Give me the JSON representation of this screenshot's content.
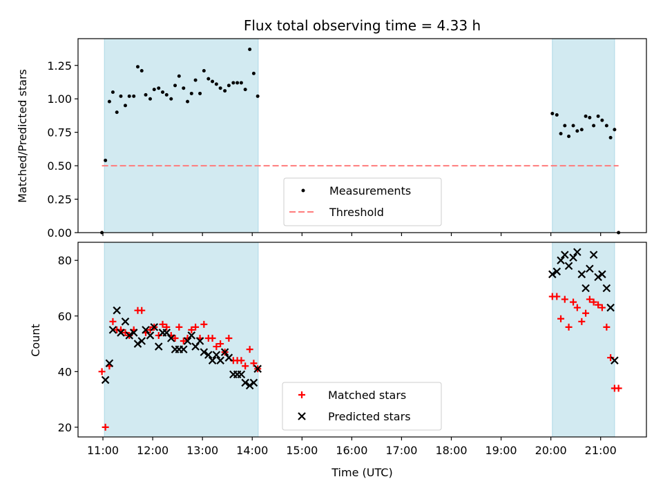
{
  "chart_data": {
    "type": "scatter",
    "title": "Flux total observing time = 4.33 h",
    "xlabel": "Time (UTC)",
    "x_ticks": [
      "11:00",
      "12:00",
      "13:00",
      "14:00",
      "15:00",
      "16:00",
      "17:00",
      "18:00",
      "19:00",
      "20:00",
      "21:00"
    ],
    "xlim": [
      10.5,
      21.92
    ],
    "shaded_intervals": [
      [
        11.03,
        14.12
      ],
      [
        20.03,
        21.28
      ]
    ],
    "colors": {
      "shade": "#add8e6",
      "measurements": "#000000",
      "threshold": "#ff7b7b",
      "matched": "#ff0000",
      "predicted": "#000000"
    },
    "panels": [
      {
        "ylabel": "Matched/Predicted stars",
        "ylim": [
          0,
          1.45
        ],
        "y_ticks": [
          "0.00",
          "0.25",
          "0.50",
          "0.75",
          "1.00",
          "1.25"
        ],
        "y_tick_values": [
          0,
          0.25,
          0.5,
          0.75,
          1.0,
          1.25
        ],
        "legend_position": "lower center",
        "series": [
          {
            "name": "Measurements",
            "marker": "dot",
            "x": [
              10.98,
              11.05,
              11.13,
              11.2,
              11.28,
              11.36,
              11.45,
              11.53,
              11.62,
              11.7,
              11.78,
              11.86,
              11.95,
              12.03,
              12.12,
              12.2,
              12.28,
              12.37,
              12.45,
              12.53,
              12.62,
              12.7,
              12.78,
              12.86,
              12.95,
              13.03,
              13.12,
              13.2,
              13.28,
              13.36,
              13.45,
              13.53,
              13.62,
              13.7,
              13.78,
              13.86,
              13.95,
              14.03,
              14.11,
              20.03,
              20.12,
              20.2,
              20.28,
              20.36,
              20.45,
              20.53,
              20.62,
              20.7,
              20.78,
              20.86,
              20.95,
              21.03,
              21.12,
              21.2,
              21.28,
              21.36
            ],
            "y": [
              0.0,
              0.54,
              0.98,
              1.05,
              0.9,
              1.02,
              0.95,
              1.02,
              1.02,
              1.24,
              1.21,
              1.03,
              1.0,
              1.07,
              1.08,
              1.05,
              1.03,
              1.0,
              1.1,
              1.17,
              1.08,
              0.98,
              1.04,
              1.14,
              1.04,
              1.21,
              1.15,
              1.13,
              1.11,
              1.08,
              1.06,
              1.1,
              1.12,
              1.12,
              1.12,
              1.07,
              1.37,
              1.19,
              1.02,
              0.89,
              0.88,
              0.74,
              0.8,
              0.72,
              0.8,
              0.76,
              0.77,
              0.87,
              0.86,
              0.8,
              0.87,
              0.84,
              0.8,
              0.71,
              0.77,
              0.0
            ]
          },
          {
            "name": "Threshold",
            "marker": "dashed-line",
            "x": [
              10.98,
              21.36
            ],
            "y": [
              0.5,
              0.5
            ]
          }
        ]
      },
      {
        "ylabel": "Count",
        "ylim": [
          16.5,
          86.5
        ],
        "y_ticks": [
          "20",
          "40",
          "60",
          "80"
        ],
        "y_tick_values": [
          20,
          40,
          60,
          80
        ],
        "legend_position": "lower center",
        "series": [
          {
            "name": "Matched stars",
            "marker": "plus",
            "x": [
              10.98,
              11.05,
              11.13,
              11.2,
              11.28,
              11.36,
              11.45,
              11.53,
              11.62,
              11.7,
              11.78,
              11.86,
              11.95,
              12.03,
              12.12,
              12.2,
              12.28,
              12.37,
              12.45,
              12.53,
              12.62,
              12.7,
              12.78,
              12.86,
              12.95,
              13.03,
              13.12,
              13.2,
              13.28,
              13.36,
              13.45,
              13.53,
              13.62,
              13.7,
              13.78,
              13.86,
              13.95,
              14.03,
              14.11,
              20.03,
              20.12,
              20.2,
              20.28,
              20.36,
              20.45,
              20.53,
              20.62,
              20.7,
              20.78,
              20.86,
              20.95,
              21.03,
              21.12,
              21.2,
              21.28,
              21.36
            ],
            "y": [
              40,
              20,
              42,
              58,
              55,
              55,
              54,
              53,
              55,
              62,
              62,
              54,
              55,
              56,
              53,
              57,
              56,
              53,
              52,
              56,
              51,
              52,
              55,
              56,
              52,
              57,
              52,
              52,
              49,
              50,
              47,
              52,
              44,
              44,
              44,
              42,
              48,
              43,
              41,
              67,
              67,
              59,
              66,
              56,
              65,
              63,
              58,
              61,
              66,
              65,
              64,
              63,
              56,
              45,
              34,
              34
            ]
          },
          {
            "name": "Predicted stars",
            "marker": "x",
            "x": [
              11.05,
              11.13,
              11.2,
              11.28,
              11.36,
              11.45,
              11.53,
              11.62,
              11.7,
              11.78,
              11.86,
              11.95,
              12.03,
              12.12,
              12.2,
              12.28,
              12.37,
              12.45,
              12.53,
              12.62,
              12.7,
              12.78,
              12.86,
              12.95,
              13.03,
              13.12,
              13.2,
              13.28,
              13.36,
              13.45,
              13.53,
              13.62,
              13.7,
              13.78,
              13.86,
              13.95,
              14.03,
              14.11,
              20.03,
              20.12,
              20.2,
              20.28,
              20.36,
              20.45,
              20.53,
              20.62,
              20.7,
              20.78,
              20.86,
              20.95,
              21.03,
              21.12,
              21.2,
              21.28
            ],
            "y": [
              37,
              43,
              55,
              62,
              54,
              58,
              53,
              54,
              50,
              51,
              55,
              53,
              56,
              49,
              54,
              54,
              52,
              48,
              48,
              48,
              51,
              53,
              49,
              51,
              47,
              46,
              44,
              46,
              44,
              47,
              45,
              39,
              39,
              39,
              36,
              35,
              36,
              41,
              75,
              76,
              80,
              82,
              78,
              81,
              83,
              75,
              70,
              77,
              82,
              74,
              75,
              70,
              63,
              44
            ]
          }
        ]
      }
    ]
  }
}
